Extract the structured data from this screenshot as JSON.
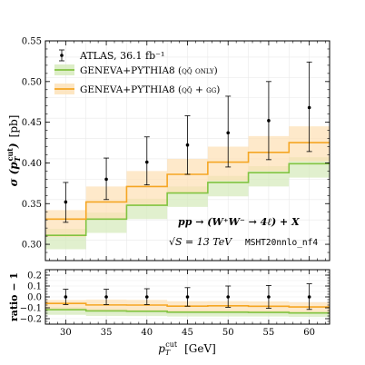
{
  "chart_data": [
    {
      "type": "line",
      "panel": "main",
      "ylabel": "σ (pT cut) [pb]",
      "ylim": [
        0.28,
        0.55
      ],
      "xlim": [
        27.5,
        62.5
      ],
      "xticks": [
        30,
        35,
        40,
        45,
        50,
        55,
        60
      ],
      "yticks": [
        0.3,
        0.35,
        0.4,
        0.45,
        0.5,
        0.55
      ],
      "ytick_labels": [
        "0.30",
        "0.35",
        "0.40",
        "0.45",
        "0.50",
        "0.55"
      ],
      "x": [
        30,
        35,
        40,
        45,
        50,
        55,
        60
      ],
      "data": {
        "name": "ATLAS, 36.1 fb⁻¹",
        "values": [
          0.352,
          0.38,
          0.401,
          0.422,
          0.437,
          0.452,
          0.468
        ],
        "err_low": [
          0.025,
          0.025,
          0.028,
          0.036,
          0.042,
          0.048,
          0.054
        ],
        "err_high": [
          0.024,
          0.026,
          0.031,
          0.036,
          0.045,
          0.048,
          0.056
        ]
      },
      "series": [
        {
          "name": "GENEVA+PYTHIA8 (qq̄ only)",
          "color": "#82c341",
          "band_color": "#d4eab9",
          "values": [
            0.311,
            0.331,
            0.348,
            0.363,
            0.376,
            0.388,
            0.399
          ],
          "band_low": [
            0.294,
            0.314,
            0.331,
            0.346,
            0.359,
            0.371,
            0.382
          ],
          "band_high": [
            0.319,
            0.339,
            0.356,
            0.371,
            0.384,
            0.396,
            0.407
          ]
        },
        {
          "name": "GENEVA+PYTHIA8 (qq̄ + gg)",
          "color": "#f5a623",
          "band_color": "#fde0b4",
          "values": [
            0.331,
            0.352,
            0.371,
            0.386,
            0.401,
            0.413,
            0.425
          ],
          "band_low": [
            0.309,
            0.33,
            0.348,
            0.363,
            0.378,
            0.39,
            0.402
          ],
          "band_high": [
            0.342,
            0.371,
            0.39,
            0.405,
            0.42,
            0.433,
            0.445
          ]
        }
      ],
      "annotations": {
        "process": "pp → (W⁺W⁻ → 4ℓ) + X",
        "energy": "√S = 13 TeV",
        "pdf": "MSHT20nnlo_nf4"
      },
      "legend_position": "top-left",
      "grid": true
    },
    {
      "type": "line",
      "panel": "ratio",
      "ylabel": "ratio − 1",
      "xlabel": "pT cut [GeV]",
      "ylim": [
        -0.25,
        0.25
      ],
      "yticks": [
        -0.2,
        -0.1,
        0.0,
        0.1,
        0.2
      ],
      "ytick_labels": [
        "−0.2",
        "−0.1",
        "0.0",
        "0.1",
        "0.2"
      ],
      "xticks": [
        30,
        35,
        40,
        45,
        50,
        55,
        60
      ],
      "x": [
        30,
        35,
        40,
        45,
        50,
        55,
        60
      ],
      "data": {
        "values": [
          0,
          0,
          0,
          0,
          0,
          0,
          0
        ],
        "err_low": [
          0.07,
          0.07,
          0.07,
          0.085,
          0.095,
          0.105,
          0.115
        ],
        "err_high": [
          0.07,
          0.07,
          0.075,
          0.085,
          0.1,
          0.105,
          0.12
        ]
      },
      "series": [
        {
          "name": "qq̄ only",
          "values": [
            -0.117,
            -0.129,
            -0.132,
            -0.14,
            -0.14,
            -0.142,
            -0.147
          ],
          "band_low": [
            -0.165,
            -0.175,
            -0.176,
            -0.18,
            -0.18,
            -0.18,
            -0.184
          ],
          "band_high": [
            -0.094,
            -0.107,
            -0.112,
            -0.12,
            -0.121,
            -0.124,
            -0.13
          ]
        },
        {
          "name": "qq̄ + gg",
          "values": [
            -0.06,
            -0.074,
            -0.075,
            -0.085,
            -0.082,
            -0.086,
            -0.092
          ],
          "band_low": [
            -0.122,
            -0.132,
            -0.132,
            -0.14,
            -0.135,
            -0.137,
            -0.141
          ],
          "band_high": [
            -0.028,
            -0.024,
            -0.027,
            -0.04,
            -0.039,
            -0.042,
            -0.049
          ]
        }
      ],
      "grid": true
    }
  ]
}
